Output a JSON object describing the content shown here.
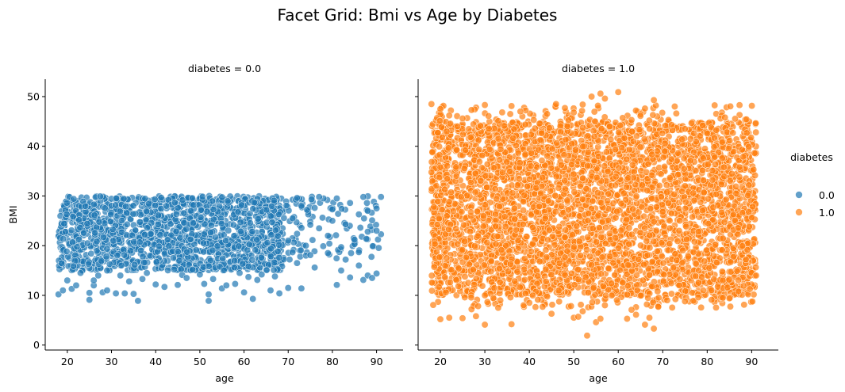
{
  "chart_data": {
    "type": "scatter",
    "title": "Facet Grid: Bmi vs Age by Diabetes",
    "xlabel": "age",
    "ylabel": "BMI",
    "xlim": [
      15,
      96
    ],
    "ylim": [
      -1,
      53.5
    ],
    "x_ticks": [
      20,
      30,
      40,
      50,
      60,
      70,
      80,
      90
    ],
    "y_ticks": [
      0,
      10,
      20,
      30,
      40,
      50
    ],
    "legend": {
      "title": "diabetes",
      "position": "right",
      "entries": [
        {
          "label": "0.0",
          "color": "#1f77b4"
        },
        {
          "label": "1.0",
          "color": "#ff7f0e"
        }
      ]
    },
    "facets": [
      {
        "title": "diabetes = 0.0",
        "hue": "0.0",
        "color": "#1f77b4",
        "dense_region": {
          "x": [
            18,
            69
          ],
          "y": [
            15,
            30
          ]
        },
        "sparse_region": {
          "x": [
            69,
            91
          ],
          "y": [
            17,
            30
          ]
        },
        "points": [
          [
            18,
            10.2
          ],
          [
            19,
            11
          ],
          [
            20,
            13
          ],
          [
            21,
            11.3
          ],
          [
            22,
            12
          ],
          [
            23,
            14.5
          ],
          [
            25,
            9.1
          ],
          [
            25,
            10.5
          ],
          [
            26,
            12
          ],
          [
            26,
            13
          ],
          [
            27,
            14
          ],
          [
            28,
            10.6
          ],
          [
            29,
            11
          ],
          [
            29,
            15
          ],
          [
            31,
            10.4
          ],
          [
            32,
            14
          ],
          [
            33,
            10.4
          ],
          [
            34,
            12.8
          ],
          [
            35,
            10.3
          ],
          [
            36,
            8.9
          ],
          [
            37,
            13.3
          ],
          [
            38,
            14.5
          ],
          [
            40,
            12.2
          ],
          [
            42,
            11.7
          ],
          [
            45,
            12.1
          ],
          [
            46,
            14.1
          ],
          [
            47,
            13.5
          ],
          [
            50,
            14.2
          ],
          [
            51,
            12.3
          ],
          [
            52,
            8.9
          ],
          [
            52,
            10.2
          ],
          [
            53,
            13.3
          ],
          [
            55,
            11.4
          ],
          [
            56,
            12
          ],
          [
            58,
            12.3
          ],
          [
            59,
            14.5
          ],
          [
            60,
            10.6
          ],
          [
            61,
            13.7
          ],
          [
            62,
            9.3
          ],
          [
            63,
            13.1
          ],
          [
            64,
            14.2
          ],
          [
            66,
            11
          ],
          [
            67,
            13.8
          ],
          [
            68,
            10.4
          ],
          [
            70,
            11.5
          ],
          [
            73,
            11.4
          ],
          [
            72,
            16.5
          ],
          [
            74,
            18
          ],
          [
            76,
            15.6
          ],
          [
            79,
            18.5
          ],
          [
            81,
            12.1
          ],
          [
            82,
            15
          ],
          [
            83,
            17.2
          ],
          [
            84,
            13.6
          ],
          [
            85,
            20.3
          ],
          [
            86,
            16
          ],
          [
            87,
            13.1
          ],
          [
            88,
            14
          ],
          [
            89,
            13.5
          ],
          [
            90,
            14.4
          ],
          [
            70,
            21
          ],
          [
            71,
            25.5
          ],
          [
            72,
            22.4
          ],
          [
            73,
            28
          ],
          [
            74,
            20
          ],
          [
            75,
            24.2
          ],
          [
            76,
            27.6
          ],
          [
            77,
            23.5
          ],
          [
            78,
            29.5
          ],
          [
            79,
            22
          ],
          [
            80,
            25
          ],
          [
            81,
            29.5
          ],
          [
            82,
            19.7
          ],
          [
            83,
            24.3
          ],
          [
            84,
            28.6
          ],
          [
            85,
            21.2
          ],
          [
            86,
            26.3
          ],
          [
            87,
            29.8
          ],
          [
            88,
            22.8
          ],
          [
            89,
            25.1
          ],
          [
            90,
            27.5
          ],
          [
            91,
            29.8
          ],
          [
            91,
            22.3
          ],
          [
            86,
            18.7
          ],
          [
            80,
            27.3
          ],
          [
            77,
            29.8
          ],
          [
            75,
            18.1
          ],
          [
            72,
            29.6
          ],
          [
            88,
            27
          ],
          [
            90,
            23
          ]
        ]
      },
      {
        "title": "diabetes = 1.0",
        "hue": "1.0",
        "color": "#ff7f0e",
        "dense_region": {
          "x": [
            18,
            91
          ],
          "y": [
            10,
            45
          ]
        },
        "points": [
          [
            18,
            48.5
          ],
          [
            20,
            47.5
          ],
          [
            22,
            46.2
          ],
          [
            25,
            45.6
          ],
          [
            27,
            47.3
          ],
          [
            30,
            48.3
          ],
          [
            33,
            45.1
          ],
          [
            36,
            48.1
          ],
          [
            38,
            47
          ],
          [
            41,
            45.3
          ],
          [
            44,
            46.5
          ],
          [
            46,
            48.5
          ],
          [
            48,
            47.7
          ],
          [
            50,
            46.8
          ],
          [
            52,
            48.4
          ],
          [
            54,
            50
          ],
          [
            56,
            50.6
          ],
          [
            57,
            49.6
          ],
          [
            60,
            50.9
          ],
          [
            61,
            45.7
          ],
          [
            63,
            45.3
          ],
          [
            65,
            46.1
          ],
          [
            66,
            47.6
          ],
          [
            68,
            49.3
          ],
          [
            72,
            44.3
          ],
          [
            75,
            43.5
          ],
          [
            79,
            44.2
          ],
          [
            83,
            45.6
          ],
          [
            84,
            45.8
          ],
          [
            20,
            5.2
          ],
          [
            22,
            5.5
          ],
          [
            25,
            5.4
          ],
          [
            27,
            7.2
          ],
          [
            28,
            5.8
          ],
          [
            30,
            4.1
          ],
          [
            33,
            7.5
          ],
          [
            36,
            4.2
          ],
          [
            40,
            8.5
          ],
          [
            43,
            7.7
          ],
          [
            45,
            6.3
          ],
          [
            50,
            5.5
          ],
          [
            51,
            5.7
          ],
          [
            52,
            6.8
          ],
          [
            53,
            1.9
          ],
          [
            55,
            4.6
          ],
          [
            56,
            5.3
          ],
          [
            57,
            8
          ],
          [
            62,
            5.3
          ],
          [
            63,
            7.1
          ],
          [
            64,
            6.1
          ],
          [
            66,
            4.1
          ],
          [
            67,
            5.5
          ],
          [
            68,
            3.3
          ],
          [
            69,
            7.7
          ],
          [
            71,
            9
          ],
          [
            75,
            8.8
          ],
          [
            78,
            9.6
          ],
          [
            81,
            9.1
          ],
          [
            85,
            9.4
          ],
          [
            87,
            10.8
          ],
          [
            90,
            14.5
          ],
          [
            91,
            14
          ]
        ]
      }
    ]
  }
}
